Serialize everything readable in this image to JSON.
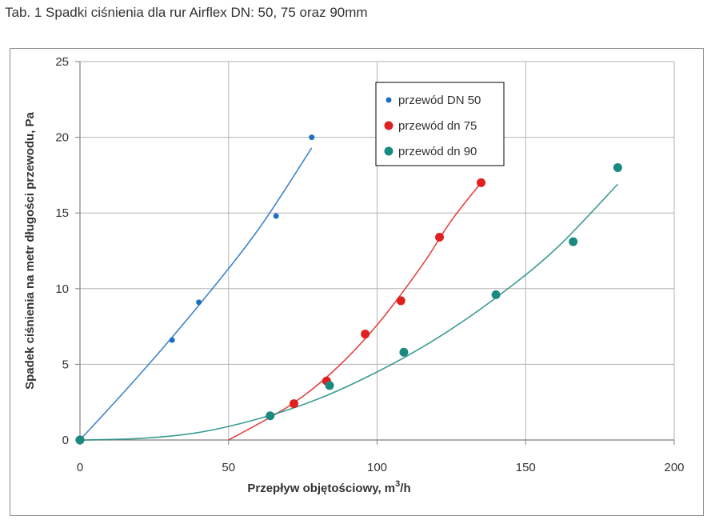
{
  "caption": "Tab. 1 Spadki ciśnienia dla rur Airflex DN: 50, 75 oraz 90mm",
  "chart_data": {
    "type": "scatter",
    "title": "",
    "xlabel": "Przepływ objętościowy, m",
    "xlabel_sup": "3",
    "xlabel_tail": "/h",
    "ylabel": "Spadek ciśnienia na metr długości przewodu, Pa",
    "xlim": [
      0,
      200
    ],
    "ylim": [
      0,
      25
    ],
    "xticks": [
      0,
      50,
      100,
      150,
      200
    ],
    "yticks": [
      0,
      5,
      10,
      15,
      20,
      25
    ],
    "grid": true,
    "legend_position": "top-center",
    "series": [
      {
        "name": "przewód DN 50",
        "color": "#1f6fc0",
        "marker_size": "small",
        "points": [
          [
            0,
            0
          ],
          [
            31,
            6.6
          ],
          [
            40,
            9.1
          ],
          [
            66,
            14.8
          ],
          [
            78,
            20
          ]
        ],
        "trend": [
          [
            0,
            0
          ],
          [
            20,
            4.3
          ],
          [
            40,
            8.9
          ],
          [
            60,
            13.9
          ],
          [
            78,
            19.3
          ]
        ]
      },
      {
        "name": "przewód dn 75",
        "color": "#e02020",
        "marker_size": "large",
        "points": [
          [
            0,
            0
          ],
          [
            72,
            2.4
          ],
          [
            83,
            3.9
          ],
          [
            96,
            7.0
          ],
          [
            108,
            9.2
          ],
          [
            121,
            13.4
          ],
          [
            135,
            17.0
          ]
        ],
        "trend": [
          [
            50,
            0
          ],
          [
            70,
            2.2
          ],
          [
            85,
            4.5
          ],
          [
            100,
            7.6
          ],
          [
            115,
            11.5
          ],
          [
            125,
            14.5
          ],
          [
            135,
            17.0
          ]
        ]
      },
      {
        "name": "przewód dn 90",
        "color": "#1a8a80",
        "marker_size": "large",
        "points": [
          [
            0,
            0
          ],
          [
            64,
            1.6
          ],
          [
            84,
            3.6
          ],
          [
            109,
            5.8
          ],
          [
            140,
            9.6
          ],
          [
            166,
            13.1
          ],
          [
            181,
            18.0
          ]
        ],
        "trend": [
          [
            0,
            0
          ],
          [
            20,
            0.1
          ],
          [
            40,
            0.5
          ],
          [
            60,
            1.4
          ],
          [
            80,
            2.7
          ],
          [
            100,
            4.5
          ],
          [
            120,
            6.7
          ],
          [
            140,
            9.4
          ],
          [
            160,
            12.6
          ],
          [
            181,
            16.9
          ]
        ]
      }
    ]
  }
}
